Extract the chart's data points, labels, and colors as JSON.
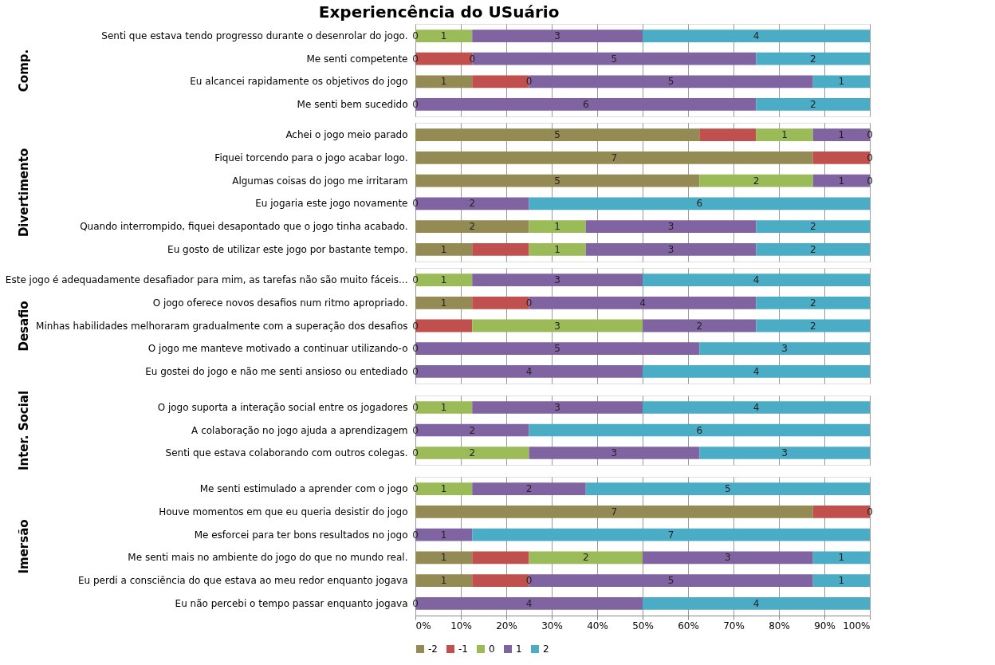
{
  "chart_data": [
    {
      "type": "bar",
      "orientation": "horizontal",
      "stacked": true,
      "title": "Experiencência do USuário",
      "ylabel": "Comp.",
      "grid": "x",
      "legend": false,
      "tick_labels": "y",
      "xlim": [
        0,
        100
      ],
      "xticks": [
        0,
        10,
        20,
        30,
        40,
        50,
        60,
        70,
        80,
        90,
        100
      ],
      "categories": [
        "Senti que estava tendo progresso durante o desenrolar do jogo.",
        "Me senti competente",
        "Eu alcancei rapidamente os objetivos do jogo",
        "Me senti bem sucedido"
      ],
      "annotations": [
        {
          "text": "0",
          "x": 0,
          "y": "Senti que estava tendo progresso durante o desenrolar do jogo."
        },
        {
          "text": "1",
          "x": 6.25,
          "y": "Senti que estava tendo progresso durante o desenrolar do jogo."
        },
        {
          "text": "3",
          "x": 31.25,
          "y": "Senti que estava tendo progresso durante o desenrolar do jogo."
        },
        {
          "text": "4",
          "x": 75,
          "y": "Senti que estava tendo progresso durante o desenrolar do jogo."
        },
        {
          "text": "0",
          "x": 0,
          "y": "Me senti competente"
        },
        {
          "text": "0",
          "x": 12.5,
          "y": "Me senti competente"
        },
        {
          "text": "5",
          "x": 43.75,
          "y": "Me senti competente"
        },
        {
          "text": "2",
          "x": 87.5,
          "y": "Me senti competente"
        },
        {
          "text": "1",
          "x": 6.25,
          "y": "Eu alcancei rapidamente os objetivos do jogo"
        },
        {
          "text": "0",
          "x": 25,
          "y": "Eu alcancei rapidamente os objetivos do jogo"
        },
        {
          "text": "5",
          "x": 56.25,
          "y": "Eu alcancei rapidamente os objetivos do jogo"
        },
        {
          "text": "1",
          "x": 93.75,
          "y": "Eu alcancei rapidamente os objetivos do jogo"
        },
        {
          "text": "0",
          "x": 0,
          "y": "Me senti bem sucedido"
        },
        {
          "text": "6",
          "x": 37.5,
          "y": "Me senti bem sucedido"
        },
        {
          "text": "2",
          "x": 87.5,
          "y": "Me senti bem sucedido"
        }
      ],
      "series": [
        {
          "color": "#948a54",
          "values": [
            0,
            0,
            12.5,
            0
          ]
        },
        {
          "color": "#c0504d",
          "values": [
            0,
            12.5,
            12.5,
            0
          ]
        },
        {
          "color": "#9bbb59",
          "values": [
            12.5,
            0,
            0,
            0
          ]
        },
        {
          "color": "#8064a2",
          "values": [
            37.5,
            62.5,
            62.5,
            75
          ]
        },
        {
          "color": "#4bacc6",
          "values": [
            50,
            25,
            12.5,
            25
          ]
        }
      ]
    },
    {
      "type": "bar",
      "orientation": "horizontal",
      "stacked": true,
      "ylabel": "Divertimento",
      "grid": "x",
      "legend": false,
      "tick_labels": "y",
      "xlim": [
        0,
        100
      ],
      "xticks": [
        0,
        10,
        20,
        30,
        40,
        50,
        60,
        70,
        80,
        90,
        100
      ],
      "categories": [
        "Achei o jogo meio parado",
        "Fiquei torcendo para o jogo acabar logo.",
        "Algumas coisas do jogo me irritaram",
        "Eu jogaria este jogo novamente",
        "Quando interrompido, fiquei desapontado que o jogo tinha acabado.",
        "Eu gosto de utilizar este jogo por bastante tempo."
      ],
      "annotations": [
        {
          "text": "5",
          "x": 31.25,
          "y": "Achei o jogo meio parado"
        },
        {
          "text": "1",
          "x": 81.25,
          "y": "Achei o jogo meio parado"
        },
        {
          "text": "1",
          "x": 93.75,
          "y": "Achei o jogo meio parado"
        },
        {
          "text": "0",
          "x": 100,
          "y": "Achei o jogo meio parado"
        },
        {
          "text": "7",
          "x": 43.75,
          "y": "Fiquei torcendo para o jogo acabar logo."
        },
        {
          "text": "0",
          "x": 100,
          "y": "Fiquei torcendo para o jogo acabar logo."
        },
        {
          "text": "5",
          "x": 31.25,
          "y": "Algumas coisas do jogo me irritaram"
        },
        {
          "text": "2",
          "x": 75,
          "y": "Algumas coisas do jogo me irritaram"
        },
        {
          "text": "1",
          "x": 93.75,
          "y": "Algumas coisas do jogo me irritaram"
        },
        {
          "text": "0",
          "x": 100,
          "y": "Algumas coisas do jogo me irritaram"
        },
        {
          "text": "0",
          "x": 0,
          "y": "Eu jogaria este jogo novamente"
        },
        {
          "text": "2",
          "x": 12.5,
          "y": "Eu jogaria este jogo novamente"
        },
        {
          "text": "6",
          "x": 62.5,
          "y": "Eu jogaria este jogo novamente"
        },
        {
          "text": "2",
          "x": 12.5,
          "y": "Quando interrompido, fiquei desapontado que o jogo tinha acabado."
        },
        {
          "text": "1",
          "x": 31.25,
          "y": "Quando interrompido, fiquei desapontado que o jogo tinha acabado."
        },
        {
          "text": "3",
          "x": 56.25,
          "y": "Quando interrompido, fiquei desapontado que o jogo tinha acabado."
        },
        {
          "text": "2",
          "x": 87.5,
          "y": "Quando interrompido, fiquei desapontado que o jogo tinha acabado."
        },
        {
          "text": "1",
          "x": 6.25,
          "y": "Eu gosto de utilizar este jogo por bastante tempo."
        },
        {
          "text": "1",
          "x": 31.25,
          "y": "Eu gosto de utilizar este jogo por bastante tempo."
        },
        {
          "text": "3",
          "x": 56.25,
          "y": "Eu gosto de utilizar este jogo por bastante tempo."
        },
        {
          "text": "2",
          "x": 87.5,
          "y": "Eu gosto de utilizar este jogo por bastante tempo."
        }
      ],
      "series": [
        {
          "color": "#948a54",
          "values": [
            62.5,
            87.5,
            62.5,
            0,
            25,
            12.5
          ]
        },
        {
          "color": "#c0504d",
          "values": [
            12.5,
            12.5,
            0,
            0,
            0,
            12.5
          ]
        },
        {
          "color": "#9bbb59",
          "values": [
            12.5,
            0,
            25,
            0,
            12.5,
            12.5
          ]
        },
        {
          "color": "#8064a2",
          "values": [
            12.5,
            0,
            12.5,
            25,
            37.5,
            37.5
          ]
        },
        {
          "color": "#4bacc6",
          "values": [
            0,
            0,
            0,
            75,
            25,
            25
          ]
        }
      ]
    },
    {
      "type": "bar",
      "orientation": "horizontal",
      "stacked": true,
      "ylabel": "Desafio",
      "grid": "x",
      "legend": false,
      "tick_labels": "y",
      "xlim": [
        0,
        100
      ],
      "xticks": [
        0,
        10,
        20,
        30,
        40,
        50,
        60,
        70,
        80,
        90,
        100
      ],
      "categories": [
        "Este jogo é adequadamente desafiador para mim, as tarefas não são muito fáceis...",
        "O jogo oferece novos desafios num ritmo apropriado.",
        "Minhas habilidades melhoraram gradualmente com a superação dos desafios",
        "O jogo me manteve motivado a continuar utilizando-o",
        "Eu gostei do jogo e não me senti ansioso ou entediado"
      ],
      "annotations": [
        {
          "text": "0",
          "x": 0,
          "y": "Este jogo é adequadamente desafiador para mim, as tarefas não são muito fáceis..."
        },
        {
          "text": "1",
          "x": 6.25,
          "y": "Este jogo é adequadamente desafiador para mim, as tarefas não são muito fáceis..."
        },
        {
          "text": "3",
          "x": 31.25,
          "y": "Este jogo é adequadamente desafiador para mim, as tarefas não são muito fáceis..."
        },
        {
          "text": "4",
          "x": 75,
          "y": "Este jogo é adequadamente desafiador para mim, as tarefas não são muito fáceis..."
        },
        {
          "text": "1",
          "x": 6.25,
          "y": "O jogo oferece novos desafios num ritmo apropriado."
        },
        {
          "text": "0",
          "x": 25,
          "y": "O jogo oferece novos desafios num ritmo apropriado."
        },
        {
          "text": "4",
          "x": 50,
          "y": "O jogo oferece novos desafios num ritmo apropriado."
        },
        {
          "text": "2",
          "x": 87.5,
          "y": "O jogo oferece novos desafios num ritmo apropriado."
        },
        {
          "text": "0",
          "x": 0,
          "y": "Minhas habilidades melhoraram gradualmente com a superação dos desafios"
        },
        {
          "text": "3",
          "x": 31.25,
          "y": "Minhas habilidades melhoraram gradualmente com a superação dos desafios"
        },
        {
          "text": "2",
          "x": 62.5,
          "y": "Minhas habilidades melhoraram gradualmente com a superação dos desafios"
        },
        {
          "text": "2",
          "x": 87.5,
          "y": "Minhas habilidades melhoraram gradualmente com a superação dos desafios"
        },
        {
          "text": "0",
          "x": 0,
          "y": "O jogo me manteve motivado a continuar utilizando-o"
        },
        {
          "text": "5",
          "x": 31.25,
          "y": "O jogo me manteve motivado a continuar utilizando-o"
        },
        {
          "text": "3",
          "x": 81.25,
          "y": "O jogo me manteve motivado a continuar utilizando-o"
        },
        {
          "text": "0",
          "x": 0,
          "y": "Eu gostei do jogo e não me senti ansioso ou entediado"
        },
        {
          "text": "4",
          "x": 25,
          "y": "Eu gostei do jogo e não me senti ansioso ou entediado"
        },
        {
          "text": "4",
          "x": 75,
          "y": "Eu gostei do jogo e não me senti ansioso ou entediado"
        }
      ],
      "series": [
        {
          "color": "#948a54",
          "values": [
            0,
            12.5,
            0,
            0,
            0
          ]
        },
        {
          "color": "#c0504d",
          "values": [
            0,
            12.5,
            12.5,
            0,
            0
          ]
        },
        {
          "color": "#9bbb59",
          "values": [
            12.5,
            0,
            37.5,
            0,
            0
          ]
        },
        {
          "color": "#8064a2",
          "values": [
            37.5,
            50,
            25,
            62.5,
            50
          ]
        },
        {
          "color": "#4bacc6",
          "values": [
            50,
            25,
            25,
            37.5,
            50
          ]
        }
      ]
    },
    {
      "type": "bar",
      "orientation": "horizontal",
      "stacked": true,
      "ylabel": "Inter. Social",
      "grid": "x",
      "legend": false,
      "tick_labels": "y",
      "xlim": [
        0,
        100
      ],
      "xticks": [
        0,
        10,
        20,
        30,
        40,
        50,
        60,
        70,
        80,
        90,
        100
      ],
      "categories": [
        "O jogo suporta a interação social entre os jogadores",
        "A colaboração no jogo ajuda a aprendizagem",
        "Senti que estava colaborando com outros colegas."
      ],
      "annotations": [
        {
          "text": "0",
          "x": 0,
          "y": "O jogo suporta a interação social entre os jogadores"
        },
        {
          "text": "1",
          "x": 6.25,
          "y": "O jogo suporta a interação social entre os jogadores"
        },
        {
          "text": "3",
          "x": 31.25,
          "y": "O jogo suporta a interação social entre os jogadores"
        },
        {
          "text": "4",
          "x": 75,
          "y": "O jogo suporta a interação social entre os jogadores"
        },
        {
          "text": "0",
          "x": 0,
          "y": "A colaboração no jogo ajuda a aprendizagem"
        },
        {
          "text": "2",
          "x": 12.5,
          "y": "A colaboração no jogo ajuda a aprendizagem"
        },
        {
          "text": "6",
          "x": 62.5,
          "y": "A colaboração no jogo ajuda a aprendizagem"
        },
        {
          "text": "0",
          "x": 0,
          "y": "Senti que estava colaborando com outros colegas."
        },
        {
          "text": "2",
          "x": 12.5,
          "y": "Senti que estava colaborando com outros colegas."
        },
        {
          "text": "3",
          "x": 43.75,
          "y": "Senti que estava colaborando com outros colegas."
        },
        {
          "text": "3",
          "x": 81.25,
          "y": "Senti que estava colaborando com outros colegas."
        }
      ],
      "series": [
        {
          "color": "#948a54",
          "values": [
            0,
            0,
            0
          ]
        },
        {
          "color": "#c0504d",
          "values": [
            0,
            0,
            0
          ]
        },
        {
          "color": "#9bbb59",
          "values": [
            12.5,
            0,
            25
          ]
        },
        {
          "color": "#8064a2",
          "values": [
            37.5,
            25,
            37.5
          ]
        },
        {
          "color": "#4bacc6",
          "values": [
            50,
            75,
            37.5
          ]
        }
      ]
    },
    {
      "type": "bar",
      "orientation": "horizontal",
      "stacked": true,
      "ylabel": "Imersão",
      "grid": "x",
      "legend": "bottom",
      "xlim": [
        0,
        100
      ],
      "xticks": [
        {
          "value": 0,
          "label": "0%"
        },
        {
          "value": 10,
          "label": "10%"
        },
        {
          "value": 20,
          "label": "20%"
        },
        {
          "value": 30,
          "label": "30%"
        },
        {
          "value": 40,
          "label": "40%"
        },
        {
          "value": 50,
          "label": "50%"
        },
        {
          "value": 60,
          "label": "60%"
        },
        {
          "value": 70,
          "label": "70%"
        },
        {
          "value": 80,
          "label": "80%"
        },
        {
          "value": 90,
          "label": "90%"
        },
        {
          "value": 100,
          "label": "100%"
        }
      ],
      "categories": [
        "Me senti estimulado a aprender com o jogo",
        "Houve momentos em que eu queria desistir do jogo",
        "Me esforcei para ter bons resultados no jogo",
        "Me senti mais no ambiente do jogo do que no mundo real.",
        "Eu perdi a consciência do que estava ao meu redor enquanto jogava",
        "Eu não percebi o tempo passar enquanto jogava"
      ],
      "annotations": [
        {
          "text": "0",
          "x": 0,
          "y": "Me senti estimulado a aprender com o jogo"
        },
        {
          "text": "1",
          "x": 6.25,
          "y": "Me senti estimulado a aprender com o jogo"
        },
        {
          "text": "2",
          "x": 25,
          "y": "Me senti estimulado a aprender com o jogo"
        },
        {
          "text": "5",
          "x": 68.75,
          "y": "Me senti estimulado a aprender com o jogo"
        },
        {
          "text": "7",
          "x": 43.75,
          "y": "Houve momentos em que eu queria desistir do jogo"
        },
        {
          "text": "0",
          "x": 100,
          "y": "Houve momentos em que eu queria desistir do jogo"
        },
        {
          "text": "0",
          "x": 0,
          "y": "Me esforcei para ter bons resultados no jogo"
        },
        {
          "text": "1",
          "x": 6.25,
          "y": "Me esforcei para ter bons resultados no jogo"
        },
        {
          "text": "7",
          "x": 56.25,
          "y": "Me esforcei para ter bons resultados no jogo"
        },
        {
          "text": "1",
          "x": 6.25,
          "y": "Me senti mais no ambiente do jogo do que no mundo real."
        },
        {
          "text": "2",
          "x": 37.5,
          "y": "Me senti mais no ambiente do jogo do que no mundo real."
        },
        {
          "text": "3",
          "x": 68.75,
          "y": "Me senti mais no ambiente do jogo do que no mundo real."
        },
        {
          "text": "1",
          "x": 93.75,
          "y": "Me senti mais no ambiente do jogo do que no mundo real."
        },
        {
          "text": "1",
          "x": 6.25,
          "y": "Eu perdi a consciência do que estava ao meu redor enquanto jogava"
        },
        {
          "text": "0",
          "x": 25,
          "y": "Eu perdi a consciência do que estava ao meu redor enquanto jogava"
        },
        {
          "text": "5",
          "x": 56.25,
          "y": "Eu perdi a consciência do que estava ao meu redor enquanto jogava"
        },
        {
          "text": "1",
          "x": 93.75,
          "y": "Eu perdi a consciência do que estava ao meu redor enquanto jogava"
        },
        {
          "text": "0",
          "x": 0,
          "y": "Eu não percebi o tempo passar enquanto jogava"
        },
        {
          "text": "4",
          "x": 25,
          "y": "Eu não percebi o tempo passar enquanto jogava"
        },
        {
          "text": "4",
          "x": 75,
          "y": "Eu não percebi o tempo passar enquanto jogava"
        }
      ],
      "series": [
        {
          "name": "-2",
          "color": "#948a54",
          "values": [
            0,
            87.5,
            0,
            12.5,
            12.5,
            0
          ]
        },
        {
          "name": "-1",
          "color": "#c0504d",
          "values": [
            0,
            12.5,
            0,
            12.5,
            12.5,
            0
          ]
        },
        {
          "name": "0",
          "color": "#9bbb59",
          "values": [
            12.5,
            0,
            0,
            25,
            0,
            0
          ]
        },
        {
          "name": "1",
          "color": "#8064a2",
          "values": [
            25,
            0,
            12.5,
            37.5,
            62.5,
            50
          ]
        },
        {
          "name": "2",
          "color": "#4bacc6",
          "values": [
            62.5,
            0,
            87.5,
            12.5,
            12.5,
            50
          ]
        }
      ]
    }
  ]
}
